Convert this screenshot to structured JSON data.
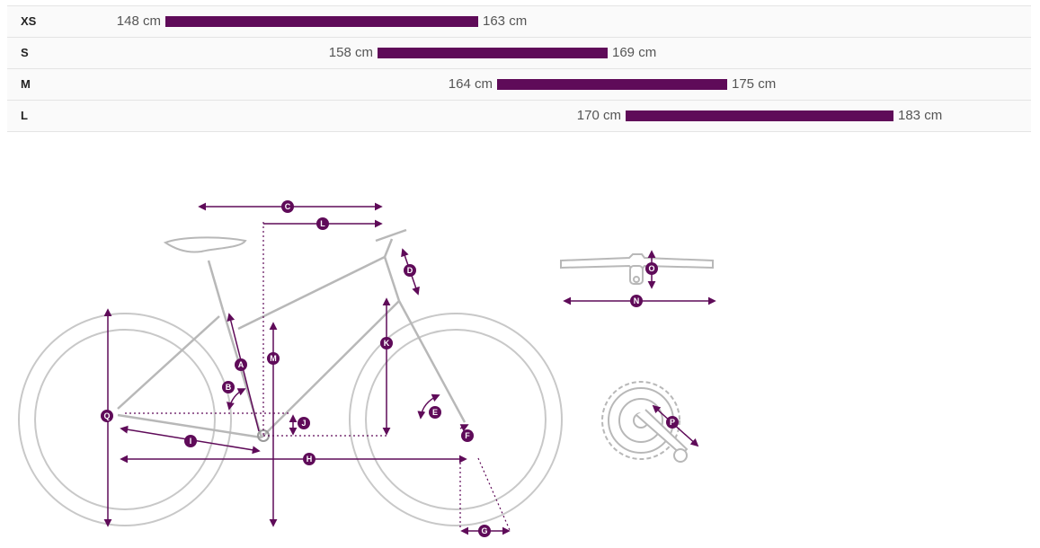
{
  "size_table": {
    "rows": [
      {
        "size": "XS",
        "min": "148 cm",
        "max": "163 cm",
        "min_cm": 148,
        "max_cm": 163
      },
      {
        "size": "S",
        "min": "158 cm",
        "max": "169 cm",
        "min_cm": 158,
        "max_cm": 169
      },
      {
        "size": "M",
        "min": "164 cm",
        "max": "175 cm",
        "min_cm": 164,
        "max_cm": 175
      },
      {
        "size": "L",
        "min": "170 cm",
        "max": "183 cm",
        "min_cm": 170,
        "max_cm": 183
      }
    ]
  },
  "colors": {
    "accent": "#5f0b59",
    "frame_line": "#c8c8c8",
    "row_border": "#e4e4e4"
  },
  "geometry_labels": [
    "A",
    "B",
    "C",
    "D",
    "E",
    "F",
    "G",
    "H",
    "I",
    "J",
    "K",
    "L",
    "M",
    "N",
    "O",
    "P",
    "Q"
  ]
}
